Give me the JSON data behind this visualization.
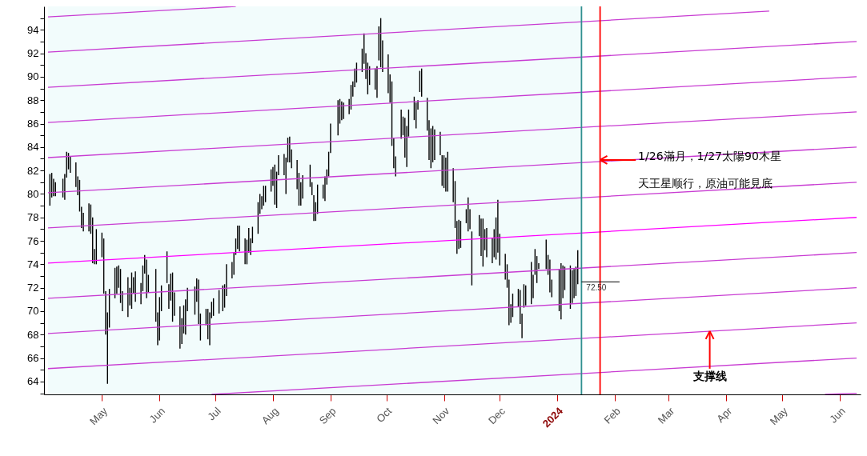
{
  "chart_data": {
    "type": "bar",
    "xlim": [
      "2023-04-02",
      "2024-06-10"
    ],
    "ylim": [
      62.9,
      96
    ],
    "xticks": [
      {
        "value": "2023-05-01",
        "label": "May"
      },
      {
        "value": "2023-06-01",
        "label": "Jun"
      },
      {
        "value": "2023-07-01",
        "label": "Jul"
      },
      {
        "value": "2023-08-01",
        "label": "Aug"
      },
      {
        "value": "2023-09-01",
        "label": "Sep"
      },
      {
        "value": "2023-10-01",
        "label": "Oct"
      },
      {
        "value": "2023-11-01",
        "label": "Nov"
      },
      {
        "value": "2023-12-01",
        "label": "Dec"
      },
      {
        "value": "2024-01-01",
        "label": "2024"
      },
      {
        "value": "2024-02-01",
        "label": "Feb"
      },
      {
        "value": "2024-03-01",
        "label": "Mar"
      },
      {
        "value": "2024-04-01",
        "label": "Apr"
      },
      {
        "value": "2024-05-01",
        "label": "May"
      },
      {
        "value": "2024-06-01",
        "label": "Jun"
      }
    ],
    "yticks": [
      {
        "value": 63,
        "label": null
      },
      64,
      {
        "value": 65,
        "label": null
      },
      66,
      {
        "value": 67,
        "label": null
      },
      68,
      {
        "value": 69,
        "label": null
      },
      70,
      {
        "value": 71,
        "label": null
      },
      72,
      {
        "value": 73,
        "label": null
      },
      74,
      {
        "value": 75,
        "label": null
      },
      76,
      {
        "value": 77,
        "label": null
      },
      78,
      {
        "value": 79,
        "label": null
      },
      80,
      {
        "value": 81,
        "label": null
      },
      82,
      {
        "value": 83,
        "label": null
      },
      84,
      {
        "value": 85,
        "label": null
      },
      86,
      {
        "value": 87,
        "label": null
      },
      88,
      {
        "value": 89,
        "label": null
      },
      90,
      {
        "value": 91,
        "label": null
      },
      92,
      {
        "value": 93,
        "label": null
      },
      94,
      {
        "value": 95,
        "label": null
      }
    ],
    "series": [
      {
        "color": "#000000",
        "x": [
          "2023-04-03",
          "2023-04-04",
          "2023-04-05",
          "2023-04-06",
          "2023-04-10",
          "2023-04-11",
          "2023-04-12",
          "2023-04-13",
          "2023-04-14",
          "2023-04-17",
          "2023-04-18",
          "2023-04-19",
          "2023-04-20",
          "2023-04-21",
          "2023-04-24",
          "2023-04-25",
          "2023-04-26",
          "2023-04-27",
          "2023-04-28",
          "2023-05-01",
          "2023-05-02",
          "2023-05-03",
          "2023-05-04",
          "2023-05-05",
          "2023-05-08",
          "2023-05-09",
          "2023-05-10",
          "2023-05-11",
          "2023-05-12",
          "2023-05-15",
          "2023-05-16",
          "2023-05-17",
          "2023-05-18",
          "2023-05-19",
          "2023-05-22",
          "2023-05-23",
          "2023-05-24",
          "2023-05-25",
          "2023-05-26",
          "2023-05-30",
          "2023-05-31",
          "2023-06-01",
          "2023-06-02",
          "2023-06-05",
          "2023-06-06",
          "2023-06-07",
          "2023-06-08",
          "2023-06-09",
          "2023-06-12",
          "2023-06-13",
          "2023-06-14",
          "2023-06-15",
          "2023-06-16",
          "2023-06-20",
          "2023-06-21",
          "2023-06-22",
          "2023-06-23",
          "2023-06-26",
          "2023-06-27",
          "2023-06-28",
          "2023-06-29",
          "2023-06-30",
          "2023-07-03",
          "2023-07-05",
          "2023-07-06",
          "2023-07-07",
          "2023-07-10",
          "2023-07-11",
          "2023-07-12",
          "2023-07-13",
          "2023-07-14",
          "2023-07-17",
          "2023-07-18",
          "2023-07-19",
          "2023-07-20",
          "2023-07-21",
          "2023-07-24",
          "2023-07-25",
          "2023-07-26",
          "2023-07-27",
          "2023-07-28",
          "2023-07-31",
          "2023-08-01",
          "2023-08-02",
          "2023-08-03",
          "2023-08-04",
          "2023-08-07",
          "2023-08-08",
          "2023-08-09",
          "2023-08-10",
          "2023-08-11",
          "2023-08-14",
          "2023-08-15",
          "2023-08-16",
          "2023-08-17",
          "2023-08-21",
          "2023-08-22",
          "2023-08-23",
          "2023-08-24",
          "2023-08-25",
          "2023-08-28",
          "2023-08-29",
          "2023-08-30",
          "2023-08-31",
          "2023-09-01",
          "2023-09-05",
          "2023-09-06",
          "2023-09-07",
          "2023-09-08",
          "2023-09-11",
          "2023-09-12",
          "2023-09-13",
          "2023-09-14",
          "2023-09-15",
          "2023-09-18",
          "2023-09-19",
          "2023-09-20",
          "2023-09-21",
          "2023-09-22",
          "2023-09-25",
          "2023-09-26",
          "2023-09-27",
          "2023-09-28",
          "2023-09-29",
          "2023-10-02",
          "2023-10-03",
          "2023-10-04",
          "2023-10-05",
          "2023-10-06",
          "2023-10-09",
          "2023-10-10",
          "2023-10-11",
          "2023-10-12",
          "2023-10-13",
          "2023-10-16",
          "2023-10-17",
          "2023-10-18",
          "2023-10-19",
          "2023-10-20",
          "2023-10-23",
          "2023-10-24",
          "2023-10-25",
          "2023-10-26",
          "2023-10-27",
          "2023-10-30",
          "2023-10-31",
          "2023-11-01",
          "2023-11-02",
          "2023-11-03",
          "2023-11-06",
          "2023-11-07",
          "2023-11-08",
          "2023-11-09",
          "2023-11-10",
          "2023-11-13",
          "2023-11-14",
          "2023-11-15",
          "2023-11-16",
          "2023-11-20",
          "2023-11-21",
          "2023-11-22",
          "2023-11-23",
          "2023-11-24",
          "2023-11-27",
          "2023-11-28",
          "2023-11-29",
          "2023-11-30",
          "2023-12-01",
          "2023-12-04",
          "2023-12-05",
          "2023-12-06",
          "2023-12-07",
          "2023-12-08",
          "2023-12-11",
          "2023-12-12",
          "2023-12-13",
          "2023-12-14",
          "2023-12-15",
          "2023-12-18",
          "2023-12-19",
          "2023-12-20",
          "2023-12-21",
          "2023-12-22",
          "2023-12-26",
          "2023-12-27",
          "2023-12-28",
          "2023-12-29",
          "2024-01-02",
          "2024-01-03",
          "2024-01-04",
          "2024-01-05",
          "2024-01-08",
          "2024-01-09",
          "2024-01-10",
          "2024-01-11",
          "2024-01-12"
        ],
        "base": [
          79.0,
          79.7,
          79.8,
          79.8,
          79.7,
          79.5,
          81.4,
          82.1,
          81.8,
          80.6,
          79.9,
          78.5,
          77.1,
          76.8,
          76.8,
          76.6,
          74.1,
          74.0,
          74.0,
          74.6,
          71.5,
          68.0,
          63.8,
          68.6,
          71.1,
          71.5,
          72.0,
          70.7,
          70.0,
          69.5,
          70.5,
          70.2,
          71.5,
          70.8,
          70.6,
          71.7,
          73.2,
          71.1,
          71.6,
          69.1,
          67.1,
          67.5,
          70.0,
          72.4,
          70.2,
          70.9,
          69.1,
          69.6,
          66.8,
          67.2,
          68.1,
          68.0,
          70.0,
          69.7,
          70.8,
          68.9,
          67.5,
          68.8,
          67.6,
          67.1,
          69.4,
          69.6,
          69.8,
          70.0,
          70.3,
          71.3,
          72.8,
          73.1,
          74.8,
          75.3,
          75.1,
          74.0,
          74.0,
          75.0,
          74.8,
          75.8,
          76.6,
          78.3,
          78.7,
          79.0,
          79.3,
          80.2,
          80.7,
          79.1,
          78.8,
          81.6,
          81.6,
          80.0,
          82.7,
          82.7,
          82.2,
          80.4,
          79.0,
          79.0,
          79.6,
          80.6,
          79.9,
          77.7,
          77.7,
          78.3,
          79.6,
          79.4,
          80.8,
          81.5,
          83.5,
          85.0,
          86.0,
          86.3,
          86.4,
          86.8,
          87.2,
          88.3,
          89.1,
          89.5,
          90.4,
          91.1,
          89.8,
          88.5,
          89.3,
          88.9,
          88.2,
          91.4,
          90.8,
          90.4,
          88.6,
          87.8,
          84.1,
          82.2,
          81.5,
          84.7,
          85.0,
          83.1,
          82.3,
          84.9,
          86.3,
          85.6,
          87.2,
          88.7,
          88.3,
          85.4,
          82.9,
          82.2,
          82.7,
          82.9,
          83.3,
          80.7,
          80.5,
          80.2,
          80.2,
          79.3,
          77.1,
          74.9,
          75.3,
          75.4,
          77.5,
          76.8,
          77.0,
          72.2,
          76.4,
          74.7,
          73.8,
          75.2,
          74.6,
          74.1,
          74.6,
          74.4,
          75.0,
          73.9,
          72.7,
          72.0,
          68.8,
          69.0,
          69.5,
          70.4,
          68.9,
          67.7,
          70.3,
          70.5,
          70.6,
          71.1,
          73.1,
          72.4,
          73.6,
          73.6,
          73.1,
          71.6,
          71.2,
          70.0,
          69.3,
          71.1,
          71.8,
          70.2,
          70.7,
          71.1,
          71.3,
          72.3
        ],
        "values": [
          2.7,
          2.1,
          1.5,
          1.2,
          1.6,
          2.2,
          2.2,
          1.4,
          1.4,
          2.1,
          1.6,
          2.7,
          1.8,
          1.6,
          2.4,
          2.5,
          3.9,
          1.3,
          3.0,
          2.1,
          4.7,
          3.7,
          6.1,
          3.3,
          2.6,
          2.3,
          1.9,
          2.9,
          1.7,
          3.4,
          1.5,
          3.1,
          1.4,
          2.6,
          1.8,
          2.2,
          1.6,
          3.3,
          1.5,
          4.5,
          2.8,
          3.7,
          2.2,
          2.7,
          2.1,
          2.3,
          4.2,
          2.0,
          3.6,
          2.2,
          2.4,
          3.0,
          2.0,
          2.4,
          2.0,
          3.8,
          2.3,
          1.4,
          2.6,
          2.8,
          1.4,
          1.5,
          2.0,
          2.2,
          2.0,
          2.7,
          1.4,
          1.9,
          1.4,
          2.0,
          2.2,
          2.2,
          2.1,
          2.1,
          1.4,
          1.4,
          2.7,
          1.7,
          1.1,
          1.7,
          1.4,
          1.9,
          1.6,
          3.4,
          3.1,
          1.7,
          1.8,
          3.1,
          2.1,
          2.2,
          1.6,
          2.5,
          2.8,
          2.0,
          2.0,
          1.9,
          1.1,
          2.2,
          1.6,
          2.5,
          1.2,
          2.1,
          1.3,
          2.1,
          2.5,
          3.0,
          2.1,
          1.6,
          1.4,
          1.3,
          2.1,
          1.3,
          1.6,
          1.7,
          2.0,
          2.6,
          2.2,
          2.7,
          1.6,
          1.8,
          2.7,
          2.9,
          4.2,
          2.7,
          3.3,
          2.4,
          5.5,
          2.6,
          1.7,
          2.5,
          1.6,
          3.4,
          3.5,
          2.3,
          2.0,
          2.2,
          0.8,
          1.8,
          2.4,
          2.8,
          3.4,
          3.4,
          3.1,
          2.6,
          2.0,
          2.6,
          2.8,
          2.9,
          3.4,
          2.9,
          4.0,
          2.8,
          2.5,
          2.3,
          1.2,
          2.9,
          1.7,
          4.6,
          1.8,
          3.2,
          4.1,
          1.8,
          2.5,
          2.1,
          2.4,
          3.6,
          4.5,
          2.7,
          2.2,
          2.0,
          3.9,
          1.6,
          2.0,
          1.5,
          2.9,
          2.1,
          2.0,
          1.7,
          3.6,
          2.0,
          2.2,
          2.3,
          0.5,
          2.5,
          1.7,
          2.8,
          1.5,
          3.6,
          4.8,
          2.8,
          2.0,
          3.7,
          2.8,
          2.5,
          2.5,
          2.9
        ]
      },
      {
        "type": "line",
        "color": "#c83cd2",
        "x": [
          "2023-04-02",
          "2023-07-12"
        ],
        "values": [
          95.1,
          96.0
        ]
      },
      {
        "type": "line",
        "color": "#c83cd2",
        "x": [
          "2023-04-02",
          "2024-04-24"
        ],
        "values": [
          92.1,
          95.6
        ]
      },
      {
        "type": "line",
        "color": "#c83cd2",
        "x": [
          "2023-04-02",
          "2024-06-10"
        ],
        "values": [
          89.1,
          93.0
        ]
      },
      {
        "type": "line",
        "color": "#c83cd2",
        "x": [
          "2023-04-02",
          "2024-06-10"
        ],
        "values": [
          86.1,
          90.0
        ]
      },
      {
        "type": "line",
        "color": "#c83cd2",
        "x": [
          "2023-04-02",
          "2024-06-10"
        ],
        "values": [
          83.1,
          87.0
        ]
      },
      {
        "type": "line",
        "color": "#c83cd2",
        "x": [
          "2023-04-02",
          "2024-06-10"
        ],
        "values": [
          80.1,
          84.0
        ]
      },
      {
        "type": "line",
        "color": "#c83cd2",
        "x": [
          "2023-04-02",
          "2024-06-10"
        ],
        "values": [
          77.1,
          81.0
        ]
      },
      {
        "type": "line",
        "color": "#ff00ff",
        "x": [
          "2023-04-02",
          "2024-06-10"
        ],
        "values": [
          74.1,
          78.0
        ]
      },
      {
        "type": "line",
        "color": "#c83cd2",
        "x": [
          "2023-04-02",
          "2024-06-10"
        ],
        "values": [
          71.1,
          75.0
        ]
      },
      {
        "type": "line",
        "color": "#c83cd2",
        "x": [
          "2023-04-02",
          "2024-06-10"
        ],
        "values": [
          68.1,
          72.0
        ]
      },
      {
        "type": "line",
        "color": "#c83cd2",
        "x": [
          "2023-04-02",
          "2024-06-10"
        ],
        "values": [
          65.1,
          69.0
        ]
      },
      {
        "type": "line",
        "color": "#c83cd2",
        "x": [
          "2023-06-29",
          "2024-06-10"
        ],
        "values": [
          62.9,
          66.0
        ]
      },
      {
        "type": "line",
        "color": "#c83cd2",
        "x": [
          "2024-05-24",
          "2024-06-10"
        ],
        "values": [
          62.9,
          63.0
        ]
      }
    ],
    "bands": [
      {
        "axis": "x",
        "from": "2023-04-02",
        "to": "2024-01-14",
        "color": "#f2fcfc"
      }
    ],
    "ref_lines": [
      {
        "axis": "x",
        "value": "2024-01-14",
        "color": "#2f8f8f"
      },
      {
        "axis": "x",
        "value": "2024-01-24",
        "color": "#ff0000"
      }
    ],
    "annotations": [
      {
        "text": "1/26滿月，1/27太陽90木星",
        "x": "2024-01-24",
        "y": 82.9
      },
      "天王星顺行，原油可能見底",
      {
        "text": "支撑线",
        "x": "2024-03-23",
        "y": 68.3
      },
      {
        "text": "72.50",
        "x": "2024-01-14",
        "y": 72.5
      }
    ]
  }
}
